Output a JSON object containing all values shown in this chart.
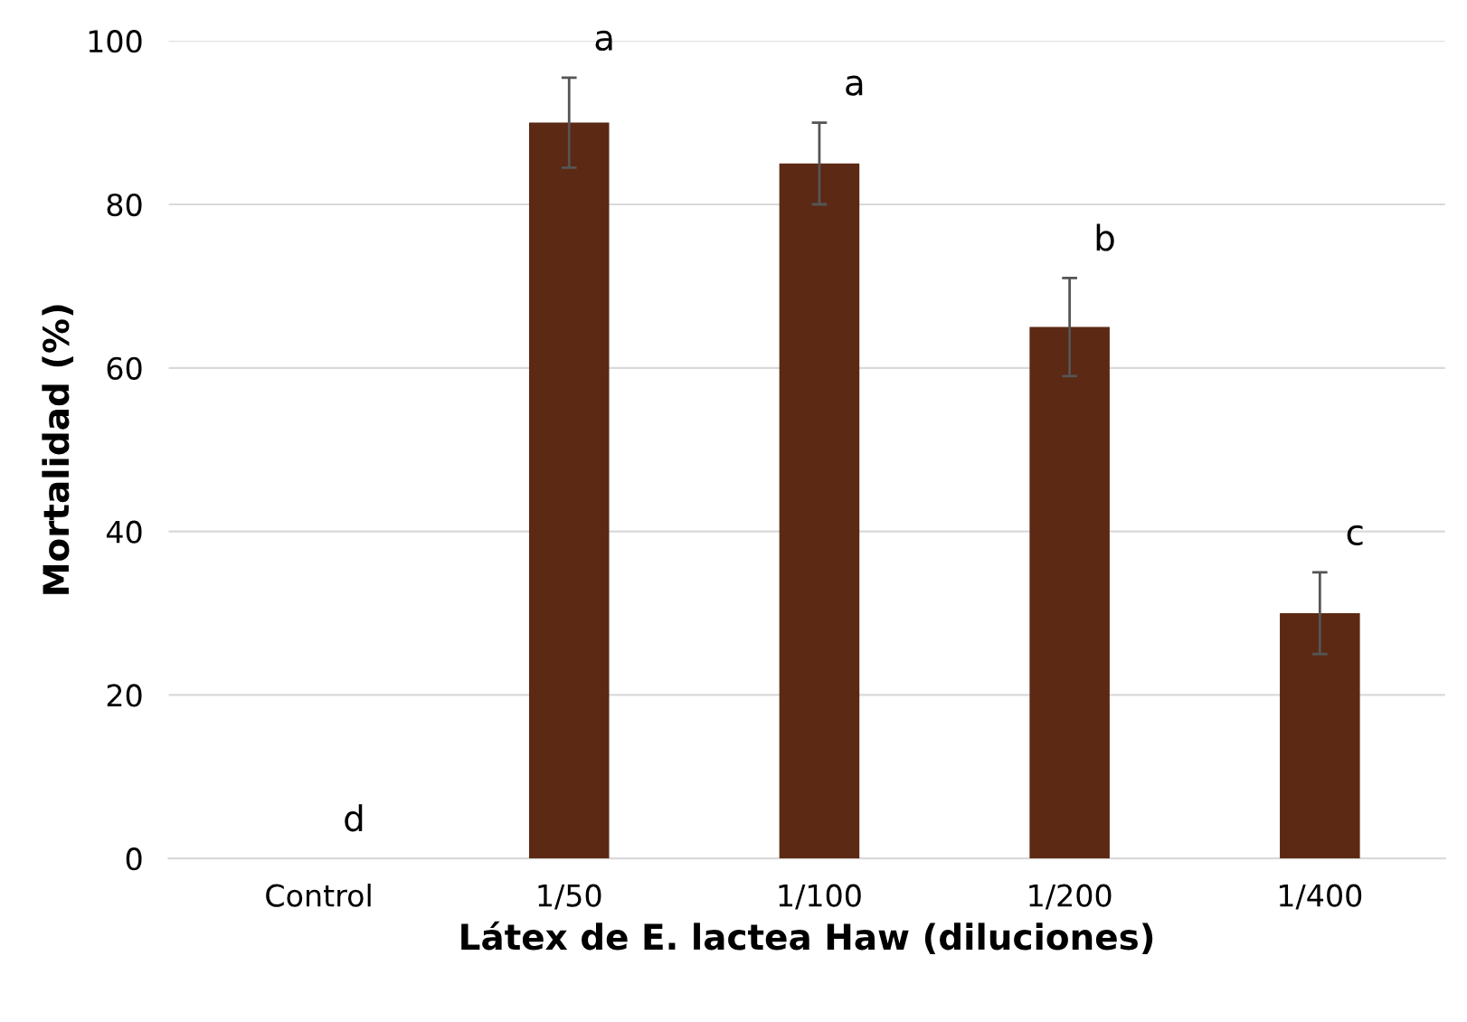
{
  "chart_data": {
    "type": "bar",
    "xlabel": "Látex de E. lactea Haw (diluciones)",
    "ylabel": "Mortalidad (%)",
    "categories": [
      "Control",
      "1/50",
      "1/100",
      "1/200",
      "1/400"
    ],
    "values": [
      0,
      90,
      85,
      65,
      30
    ],
    "errors": [
      null,
      5.5,
      5,
      6,
      5
    ],
    "color": "#5b2914",
    "ylim": [
      0,
      100
    ],
    "yticks": [
      0,
      20,
      40,
      60,
      80,
      100
    ],
    "grid": "y",
    "annotations": [
      {
        "text": "d",
        "x": "Control",
        "y": 0
      },
      {
        "text": "a",
        "x": "1/50",
        "y": 95.5
      },
      {
        "text": "a",
        "x": "1/100",
        "y": 90
      },
      {
        "text": "b",
        "x": "1/200",
        "y": 71
      },
      {
        "text": "c",
        "x": "1/400",
        "y": 35
      }
    ]
  }
}
